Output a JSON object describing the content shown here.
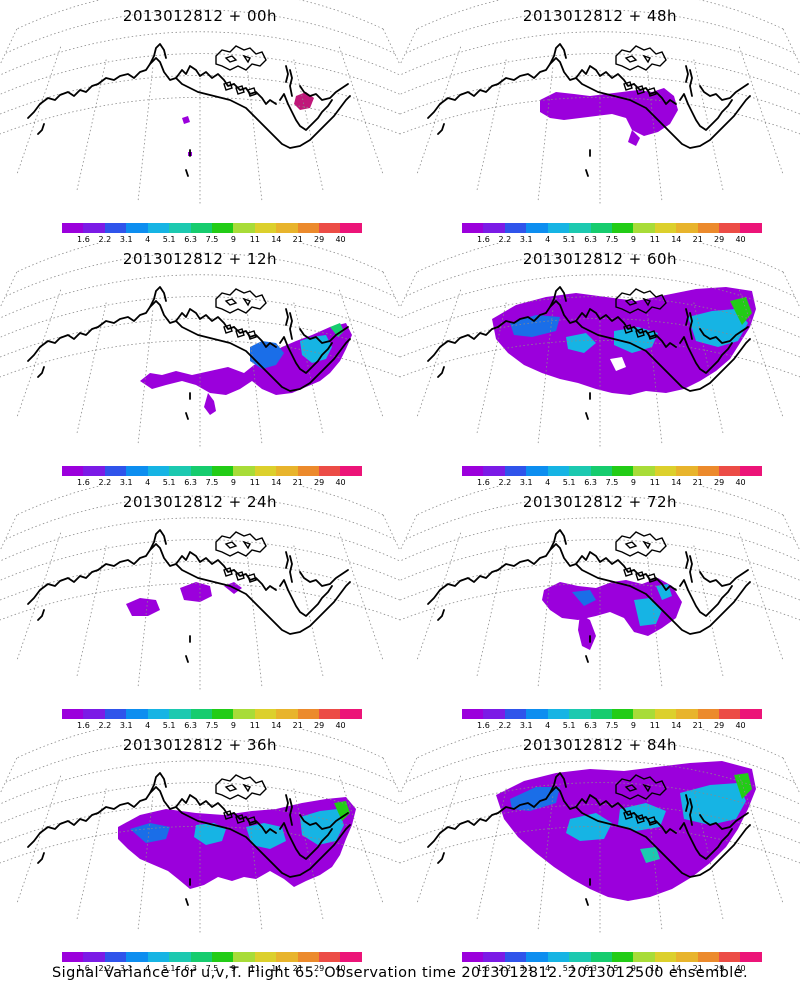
{
  "panels": [
    {
      "title": "2013012812 + 00h",
      "spread": 0
    },
    {
      "title": "2013012812 + 48h",
      "spread": 4
    },
    {
      "title": "2013012812 + 12h",
      "spread": 1
    },
    {
      "title": "2013012812 + 60h",
      "spread": 5
    },
    {
      "title": "2013012812 + 24h",
      "spread": 2
    },
    {
      "title": "2013012812 + 72h",
      "spread": 6
    },
    {
      "title": "2013012812 + 36h",
      "spread": 3
    },
    {
      "title": "2013012812 + 84h",
      "spread": 7
    }
  ],
  "colorbar": {
    "labels": [
      "1.6",
      "2.2",
      "3.1",
      "4",
      "5.1",
      "6.3",
      "7.5",
      "9",
      "11",
      "14",
      "21",
      "29",
      "40"
    ],
    "colors": [
      "#9b00dc",
      "#7b1be6",
      "#2f54eb",
      "#0d8ef0",
      "#16b4e4",
      "#1cc9b0",
      "#16cc6e",
      "#22cc16",
      "#a8dc38",
      "#dcd02c",
      "#e8b42c",
      "#ec8a2c",
      "#ec4c46",
      "#ec1478"
    ]
  },
  "footer": "Signal Variance for u,v,T. Flight 65. Observation time 2013012812. 2013012500 ensemble."
}
